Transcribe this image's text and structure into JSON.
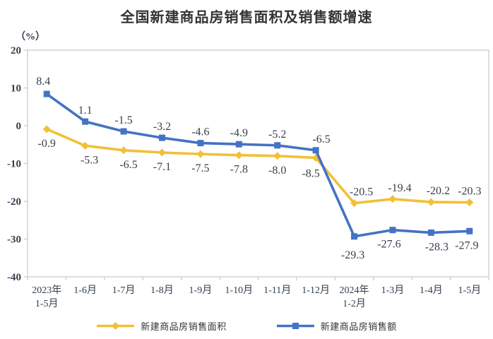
{
  "chart_data": {
    "type": "line",
    "title": "全国新建商品房销售面积及销售额增速",
    "unit_label": "（%）",
    "xlabel": "",
    "ylabel": "（%）",
    "ylim": [
      -40,
      20
    ],
    "yticks": [
      20,
      10,
      0,
      -10,
      -20,
      -30,
      -40
    ],
    "grid": false,
    "legend_position": "bottom",
    "axis_color": "#C9C9C9",
    "text_color": "#333F4F",
    "categories": [
      "2023年\n1-5月",
      "1-6月",
      "1-7月",
      "1-8月",
      "1-9月",
      "1-10月",
      "1-11月",
      "1-12月",
      "2024年\n1-2月",
      "1-3月",
      "1-4月",
      "1-5月"
    ],
    "series": [
      {
        "name": "新建商品房销售面积",
        "color": "#F2C037",
        "marker": "diamond",
        "values": [
          -0.9,
          -5.3,
          -6.5,
          -7.1,
          -7.5,
          -7.8,
          -8.0,
          -8.5,
          -20.5,
          -19.4,
          -20.2,
          -20.3
        ]
      },
      {
        "name": "新建商品房销售额",
        "color": "#4472C4",
        "marker": "square",
        "values": [
          8.4,
          1.1,
          -1.5,
          -3.2,
          -4.6,
          -4.9,
          -5.2,
          -6.5,
          -29.3,
          -27.6,
          -28.3,
          -27.9
        ]
      }
    ]
  }
}
